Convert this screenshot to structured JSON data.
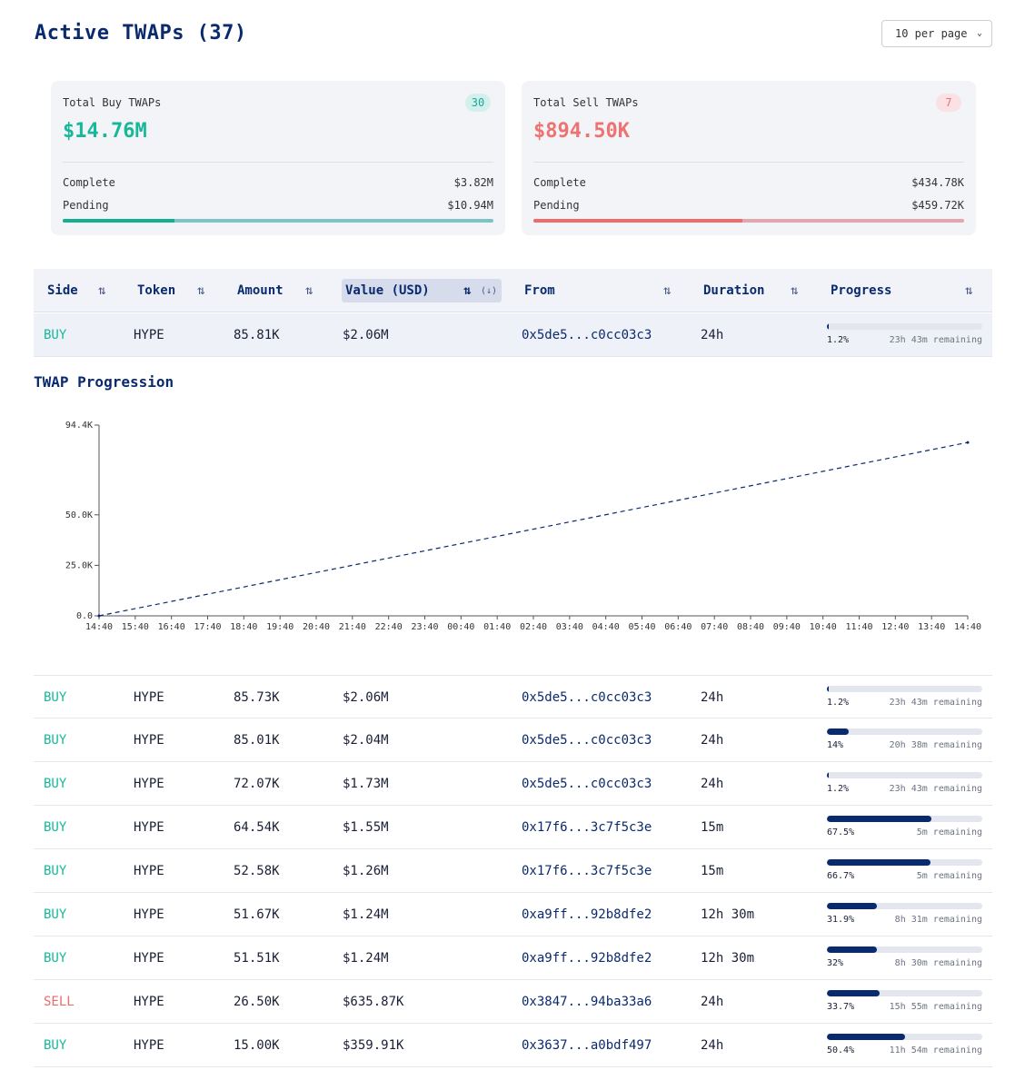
{
  "header": {
    "title": "Active TWAPs (37)",
    "per_page": "10 per page"
  },
  "summary": {
    "buy": {
      "label": "Total Buy TWAPs",
      "count": "30",
      "total": "$14.76M",
      "complete_label": "Complete",
      "complete_value": "$3.82M",
      "pending_label": "Pending",
      "pending_value": "$10.94M",
      "complete_fraction": 0.26
    },
    "sell": {
      "label": "Total Sell TWAPs",
      "count": "7",
      "total": "$894.50K",
      "complete_label": "Complete",
      "complete_value": "$434.78K",
      "pending_label": "Pending",
      "pending_value": "$459.72K",
      "complete_fraction": 0.486
    }
  },
  "table": {
    "columns": {
      "side": "Side",
      "token": "Token",
      "amount": "Amount",
      "value": "Value (USD)",
      "value_sort_hint": "(↓)",
      "from": "From",
      "duration": "Duration",
      "progress": "Progress"
    },
    "sort_icon": "⇅",
    "selected_row": {
      "side": "BUY",
      "token": "HYPE",
      "amount": "85.81K",
      "value": "$2.06M",
      "from": "0x5de5...c0cc03c3",
      "duration": "24h",
      "progress_label": "1.2%",
      "progress": 0.012,
      "remaining": "23h 43m remaining"
    },
    "rows": [
      {
        "side": "BUY",
        "token": "HYPE",
        "amount": "85.73K",
        "value": "$2.06M",
        "from": "0x5de5...c0cc03c3",
        "duration": "24h",
        "progress_label": "1.2%",
        "progress": 0.012,
        "remaining": "23h 43m remaining"
      },
      {
        "side": "BUY",
        "token": "HYPE",
        "amount": "85.01K",
        "value": "$2.04M",
        "from": "0x5de5...c0cc03c3",
        "duration": "24h",
        "progress_label": "14%",
        "progress": 0.14,
        "remaining": "20h 38m remaining"
      },
      {
        "side": "BUY",
        "token": "HYPE",
        "amount": "72.07K",
        "value": "$1.73M",
        "from": "0x5de5...c0cc03c3",
        "duration": "24h",
        "progress_label": "1.2%",
        "progress": 0.012,
        "remaining": "23h 43m remaining"
      },
      {
        "side": "BUY",
        "token": "HYPE",
        "amount": "64.54K",
        "value": "$1.55M",
        "from": "0x17f6...3c7f5c3e",
        "duration": "15m",
        "progress_label": "67.5%",
        "progress": 0.675,
        "remaining": "5m remaining"
      },
      {
        "side": "BUY",
        "token": "HYPE",
        "amount": "52.58K",
        "value": "$1.26M",
        "from": "0x17f6...3c7f5c3e",
        "duration": "15m",
        "progress_label": "66.7%",
        "progress": 0.667,
        "remaining": "5m remaining"
      },
      {
        "side": "BUY",
        "token": "HYPE",
        "amount": "51.67K",
        "value": "$1.24M",
        "from": "0xa9ff...92b8dfe2",
        "duration": "12h 30m",
        "progress_label": "31.9%",
        "progress": 0.319,
        "remaining": "8h 31m remaining"
      },
      {
        "side": "BUY",
        "token": "HYPE",
        "amount": "51.51K",
        "value": "$1.24M",
        "from": "0xa9ff...92b8dfe2",
        "duration": "12h 30m",
        "progress_label": "32%",
        "progress": 0.32,
        "remaining": "8h 30m remaining"
      },
      {
        "side": "SELL",
        "token": "HYPE",
        "amount": "26.50K",
        "value": "$635.87K",
        "from": "0x3847...94ba33a6",
        "duration": "24h",
        "progress_label": "33.7%",
        "progress": 0.337,
        "remaining": "15h 55m remaining"
      },
      {
        "side": "BUY",
        "token": "HYPE",
        "amount": "15.00K",
        "value": "$359.91K",
        "from": "0x3637...a0bdf497",
        "duration": "24h",
        "progress_label": "50.4%",
        "progress": 0.504,
        "remaining": "11h 54m remaining"
      }
    ]
  },
  "progression": {
    "title": "TWAP Progression"
  },
  "chart_data": {
    "type": "line",
    "title": "TWAP Progression",
    "x_ticks": [
      "14:40",
      "15:40",
      "16:40",
      "17:40",
      "18:40",
      "19:40",
      "20:40",
      "21:40",
      "22:40",
      "23:40",
      "00:40",
      "01:40",
      "02:40",
      "03:40",
      "04:40",
      "05:40",
      "06:40",
      "07:40",
      "08:40",
      "09:40",
      "10:40",
      "11:40",
      "12:40",
      "13:40",
      "14:40"
    ],
    "y_ticks": [
      {
        "value": 0,
        "label": "0.0"
      },
      {
        "value": 25000,
        "label": "25.0K"
      },
      {
        "value": 50000,
        "label": "50.0K"
      },
      {
        "value": 94400,
        "label": "94.4K"
      }
    ],
    "ylim": [
      0,
      94400
    ],
    "series": [
      {
        "style": "dashed",
        "color": "#0a2a6e",
        "points": [
          {
            "x": "14:40",
            "y": 0
          },
          {
            "x": "14:40 (+24h)",
            "y": 85810
          }
        ]
      }
    ]
  }
}
